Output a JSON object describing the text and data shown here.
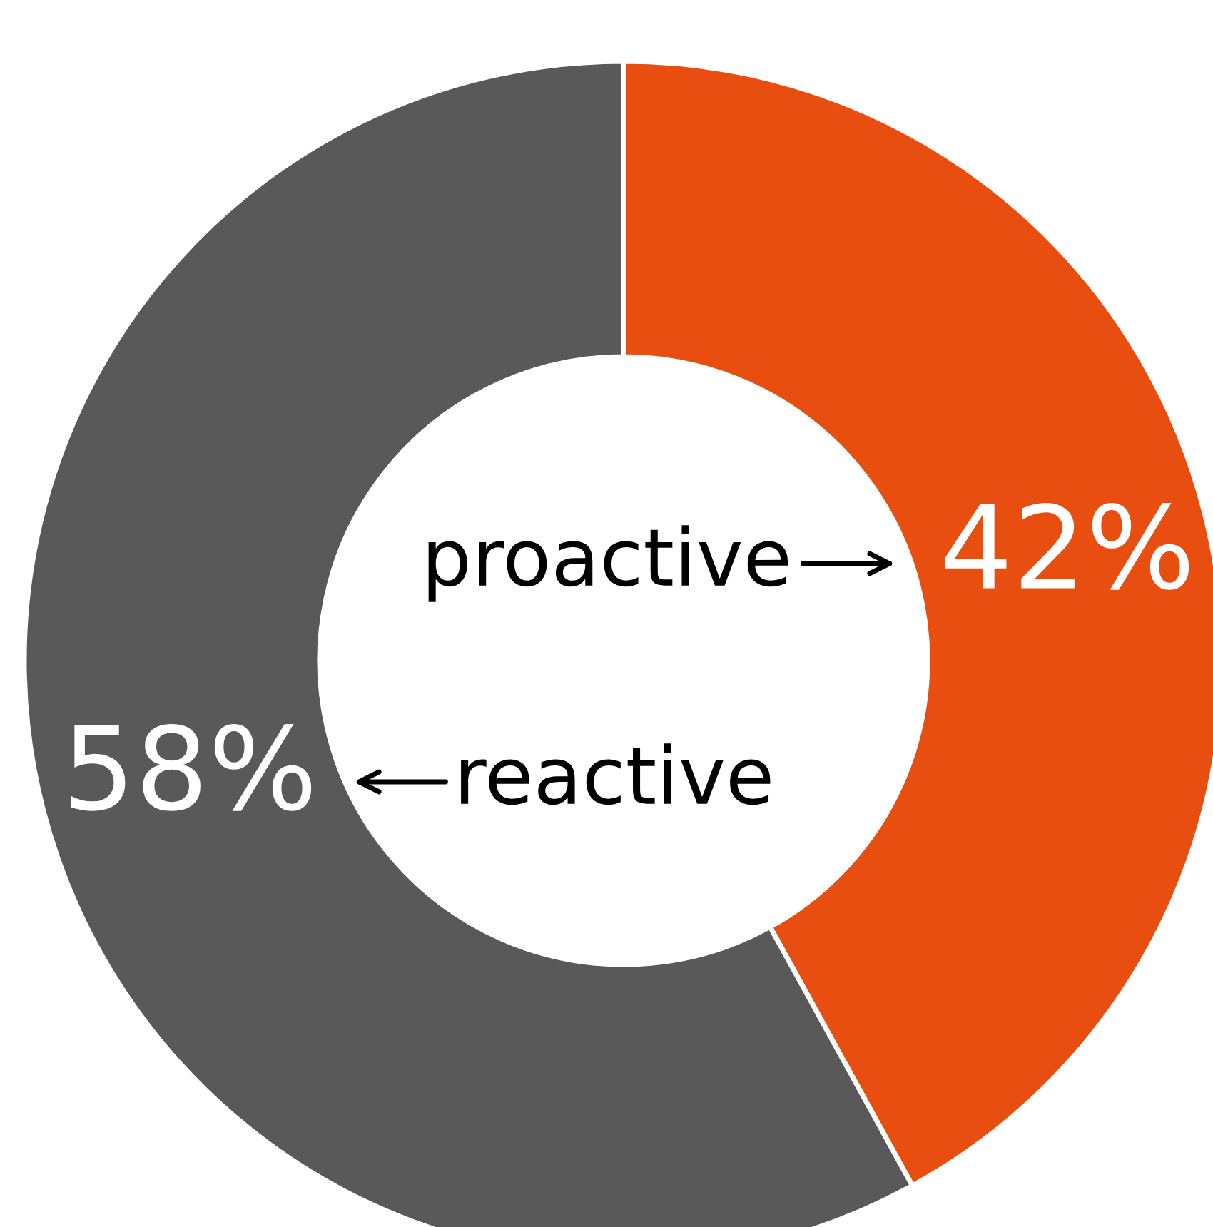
{
  "chart_data": {
    "type": "donut",
    "categories": [
      "proactive",
      "reactive"
    ],
    "values": [
      42,
      58
    ],
    "value_labels": [
      "42%",
      "58%"
    ],
    "colors": [
      "#e84e0f",
      "#595959"
    ],
    "legend": false
  }
}
